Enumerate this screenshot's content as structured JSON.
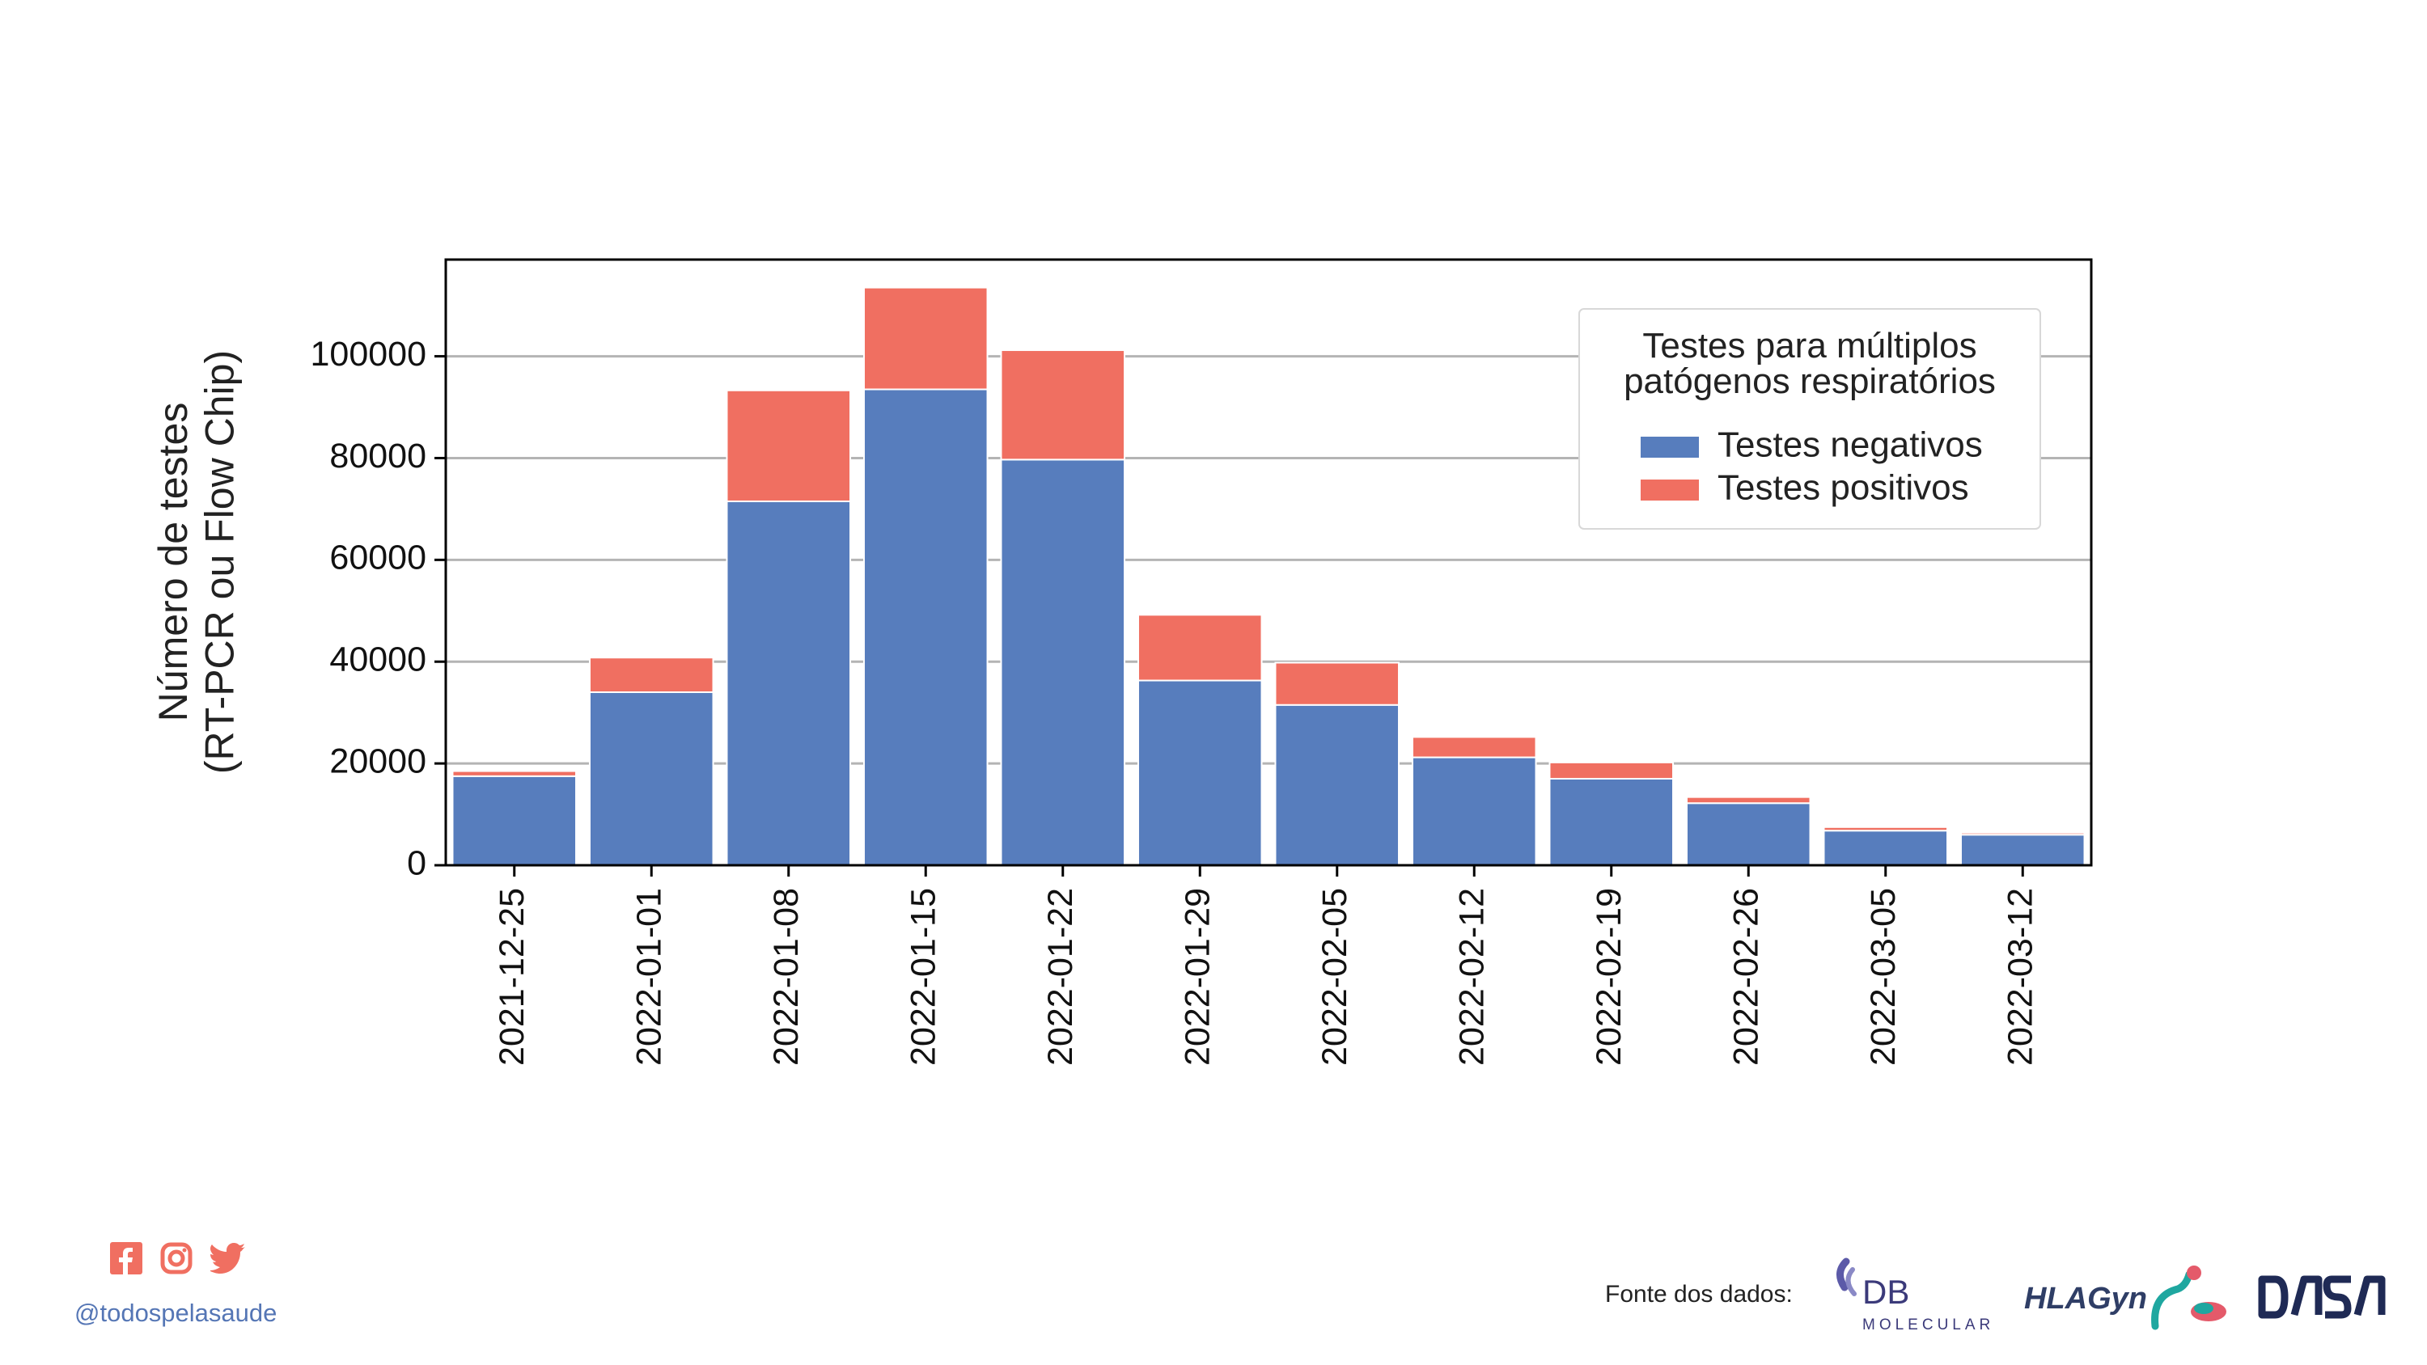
{
  "chart_data": {
    "type": "bar",
    "stacked": true,
    "categories": [
      "2021-12-25",
      "2022-01-01",
      "2022-01-08",
      "2022-01-15",
      "2022-01-22",
      "2022-01-29",
      "2022-02-05",
      "2022-02-12",
      "2022-02-19",
      "2022-02-26",
      "2022-03-05",
      "2022-03-12"
    ],
    "series": [
      {
        "name": "Testes negativos",
        "color": "#577dbd",
        "values": [
          17500,
          34000,
          71500,
          93500,
          79700,
          36300,
          31500,
          21200,
          17000,
          12200,
          6800,
          6000
        ]
      },
      {
        "name": "Testes positivos",
        "color": "#f06f61",
        "values": [
          1000,
          6800,
          21800,
          20000,
          21500,
          12900,
          8300,
          4000,
          3200,
          1200,
          700,
          400
        ]
      }
    ],
    "ylabel": "Número de testes\n(RT-PCR ou Flow Chip)",
    "yticks": [
      0,
      20000,
      40000,
      60000,
      80000,
      100000
    ],
    "ytick_labels": [
      "0",
      "20000",
      "40000",
      "60000",
      "80000",
      "100000"
    ],
    "ylim": [
      0,
      119000
    ],
    "grid": "y",
    "legend": {
      "title": "Testes para múltiplos\npatógenos respiratórios",
      "placement": "upper-right"
    }
  },
  "footer": {
    "handle": "@todospelasaude",
    "source_label": "Fonte dos dados:",
    "social_icons": [
      "facebook-icon",
      "instagram-icon",
      "twitter-icon"
    ],
    "accent_color": "#f06f61",
    "logos": {
      "db": {
        "line1": "DB",
        "line2": "MOLECULAR"
      },
      "hla": {
        "text": "HLAGyn"
      },
      "dasa": {
        "text": "DASA"
      }
    }
  }
}
